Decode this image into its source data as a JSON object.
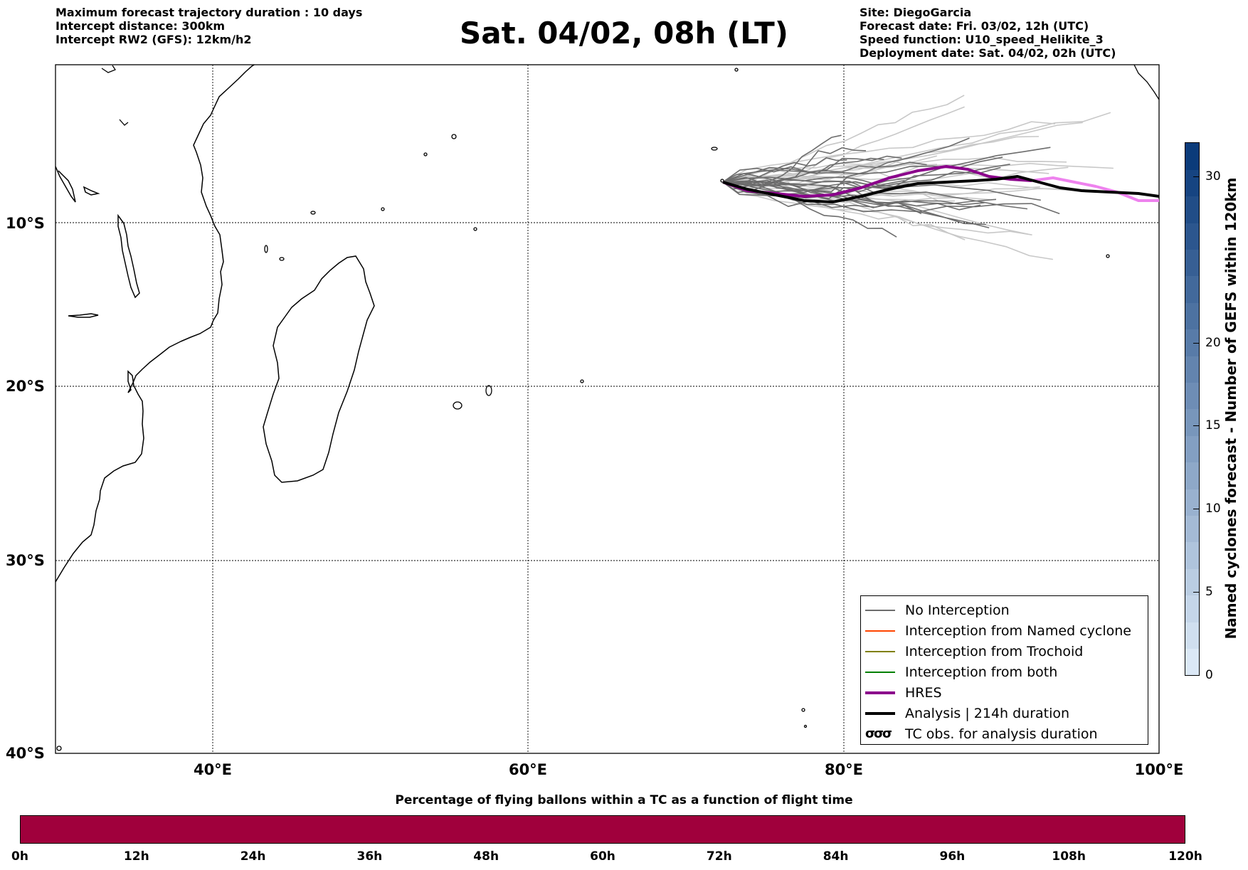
{
  "header": {
    "left_lines": [
      "Maximum forecast trajectory duration : 10 days",
      "Intercept distance: 300km",
      "Intercept RW2 (GFS):  12km/h2"
    ],
    "title": "Sat. 04/02, 08h (LT)",
    "right_lines": [
      "Site: DiegoGarcia",
      "Forecast date: Fri. 03/02, 12h (UTC)",
      "Speed function: U10_speed_Helikite_3",
      "Deployment date: Sat. 04/02, 02h (UTC)"
    ]
  },
  "map": {
    "lon_range": [
      30,
      100
    ],
    "lat_range": [
      0,
      -40
    ],
    "lon_labels": [
      "40°E",
      "60°E",
      "80°E",
      "100°E"
    ],
    "lat_labels": [
      "10°S",
      "20°S",
      "30°S",
      "40°S"
    ],
    "colors": {
      "no_interception": "#6d6d6d",
      "ensemble_light": "#c8c8c8",
      "hres": "#8b008b",
      "hres_light": "#ee82ee",
      "analysis": "#000000",
      "coast": "#000000"
    }
  },
  "legend": {
    "items": [
      {
        "label": "No Interception",
        "color": "#6d6d6d",
        "width": 1.2
      },
      {
        "label": "Interception from Named cyclone",
        "color": "#ff4500",
        "width": 1.2
      },
      {
        "label": "Interception from Trochoid",
        "color": "#808000",
        "width": 1.2
      },
      {
        "label": "Interception from both",
        "color": "#008000",
        "width": 1.2
      },
      {
        "label": "HRES",
        "color": "#8b008b",
        "width": 4
      },
      {
        "label": "Analysis | 214h duration",
        "color": "#000000",
        "width": 4
      }
    ],
    "tc_symbol": "σσσ",
    "tc_label": "TC obs. for analysis duration"
  },
  "colorbar": {
    "title": "Named cyclones forecast - Number of GEFS within 120km",
    "ticks": [
      "0",
      "5",
      "10",
      "15",
      "20",
      "30"
    ],
    "tick_values": [
      0,
      5,
      10,
      15,
      20,
      30
    ],
    "range": [
      0,
      32
    ],
    "color_low": "#dbe8f6",
    "color_high": "#0b3b7a"
  },
  "timebar": {
    "title": "Percentage of flying ballons within a TC as a function of flight time",
    "ticks": [
      "0h",
      "12h",
      "24h",
      "36h",
      "48h",
      "60h",
      "72h",
      "84h",
      "96h",
      "108h",
      "120h"
    ],
    "fill_color": "#a0003c"
  }
}
